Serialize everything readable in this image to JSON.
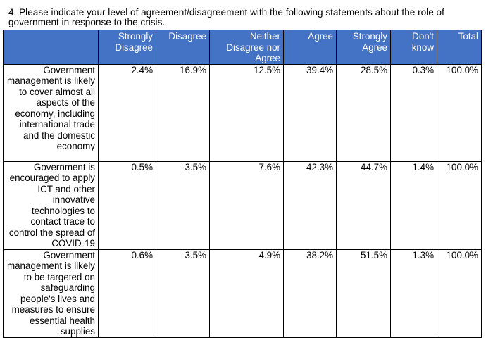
{
  "question": "4. Please indicate your level of agreement/disagreement with the following statements about the role of government in response to the crisis.",
  "columns": [
    "Strongly Disagree",
    "Disagree",
    "Neither Disagree nor Agree",
    "Agree",
    "Strongly Agree",
    "Don't know",
    "Total"
  ],
  "rows": [
    {
      "statement": "Government management is likely to cover almost all aspects of the economy, including international trade and the domestic economy",
      "values": [
        "2.4%",
        "16.9%",
        "12.5%",
        "39.4%",
        "28.5%",
        "0.3%",
        "100.0%"
      ]
    },
    {
      "statement": "Government is encouraged to apply ICT and other innovative technologies to contact trace to control the spread of COVID-19",
      "values": [
        "0.5%",
        "3.5%",
        "7.6%",
        "42.3%",
        "44.7%",
        "1.4%",
        "100.0%"
      ]
    },
    {
      "statement": "Government management is likely to be targeted on safeguarding people's lives and measures to ensure essential health supplies",
      "values": [
        "0.6%",
        "3.5%",
        "4.9%",
        "38.2%",
        "51.5%",
        "1.3%",
        "100.0%"
      ]
    }
  ],
  "colors": {
    "header_background": "#4472c4",
    "header_text": "#ffffff",
    "border": "#000000"
  }
}
